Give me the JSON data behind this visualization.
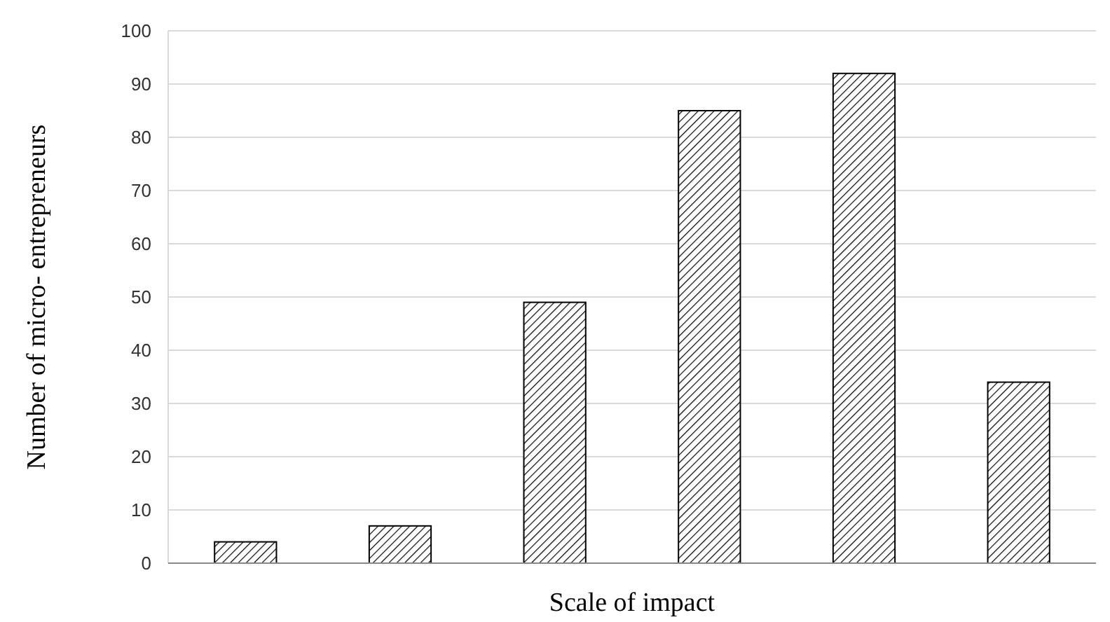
{
  "chart_data": {
    "type": "bar",
    "xlabel": "Scale of impact",
    "ylabel": "Number of micro- entrepreneurs",
    "categories": [
      null,
      null,
      null,
      null,
      null,
      null
    ],
    "values": [
      4,
      7,
      49,
      85,
      92,
      34
    ],
    "color": "#000000",
    "ylim": [
      0,
      100
    ],
    "yticks": [
      0,
      10,
      20,
      30,
      40,
      50,
      60,
      70,
      80,
      90,
      100
    ],
    "grid": "y"
  }
}
